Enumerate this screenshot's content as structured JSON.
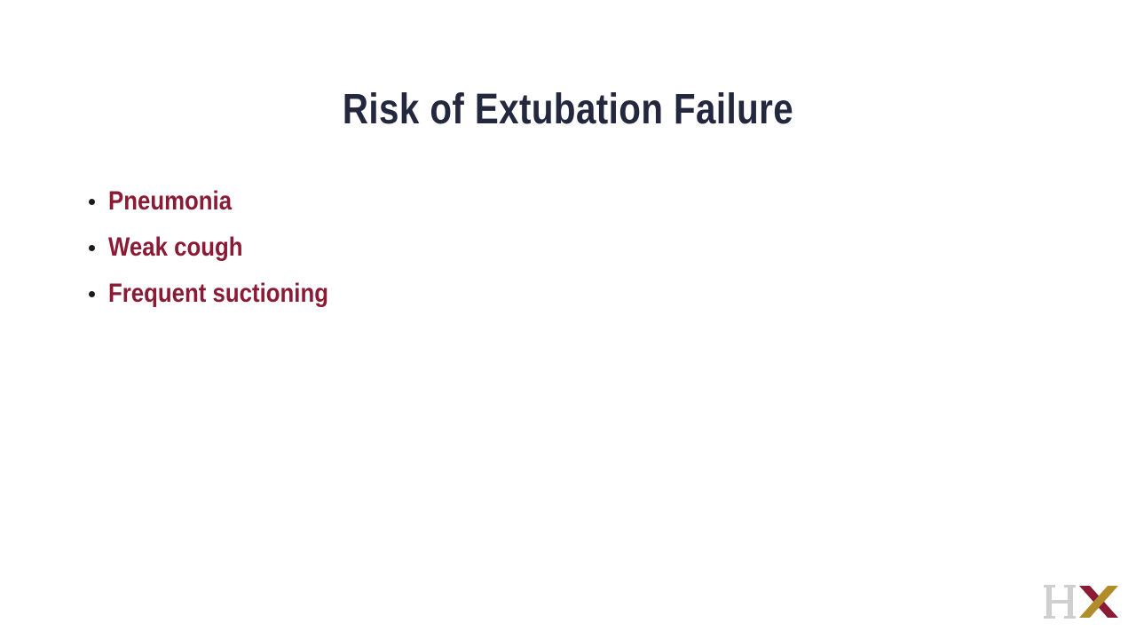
{
  "slide": {
    "title": "Risk of Extubation Failure",
    "bullets": [
      "Pneumonia",
      "Weak cough",
      "Frequent suctioning"
    ]
  },
  "logo": {
    "text": "HX",
    "colors": {
      "h": "#cfcfcf",
      "x_maroon": "#8b1a35",
      "x_gold": "#b08d2a"
    }
  },
  "colors": {
    "title": "#23283f",
    "bullet_text": "#8b1a35",
    "bullet_dot": "#1a1a1a",
    "background": "#ffffff"
  }
}
